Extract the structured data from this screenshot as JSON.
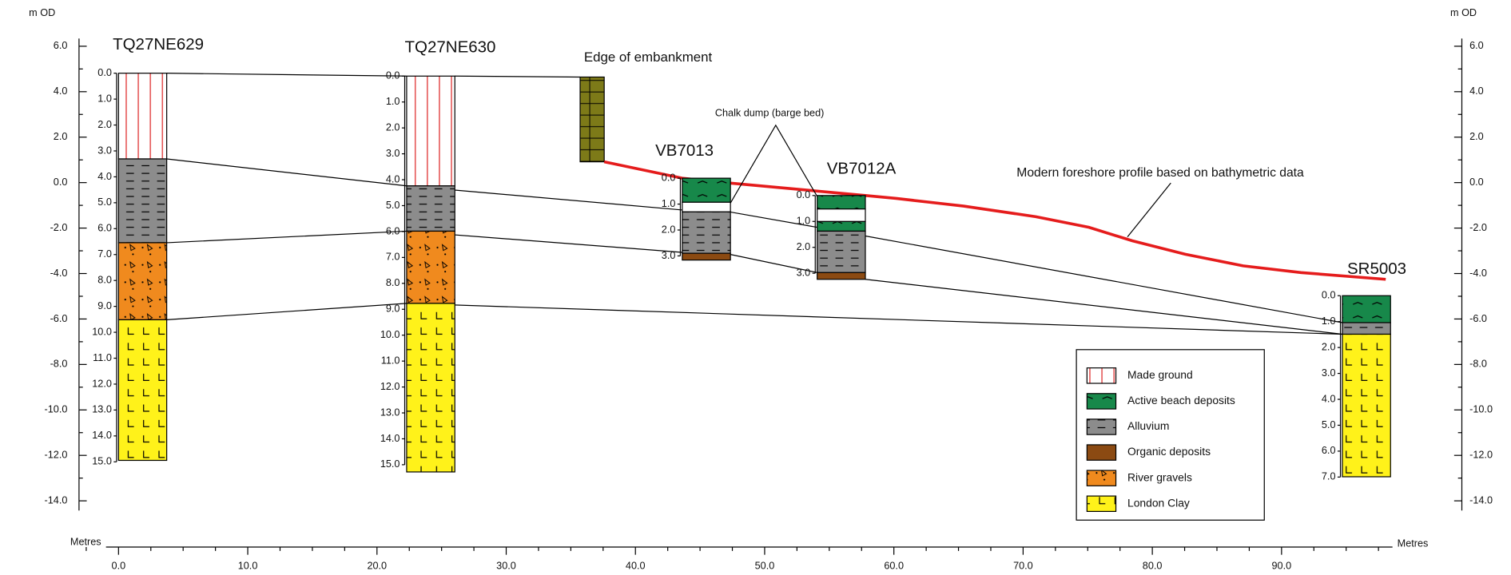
{
  "axes": {
    "left_unit": "m OD",
    "right_unit": "m OD",
    "y_ticks": [
      "6.0",
      "4.0",
      "2.0",
      "0.0",
      "-2.0",
      "-4.0",
      "-6.0",
      "-8.0",
      "-10.0",
      "-12.0",
      "-14.0"
    ],
    "x_unit_left": "Metres",
    "x_unit_right": "Metres",
    "x_ticks": [
      "0.0",
      "10.0",
      "20.0",
      "30.0",
      "40.0",
      "50.0",
      "60.0",
      "70.0",
      "80.0",
      "90.0"
    ]
  },
  "boreholes": [
    {
      "name": "TQ27NE629",
      "depths": [
        "0.0",
        "1.0",
        "2.0",
        "3.0",
        "4.0",
        "5.0",
        "6.0",
        "7.0",
        "8.0",
        "9.0",
        "10.0",
        "11.0",
        "12.0",
        "13.0",
        "14.0",
        "15.0"
      ]
    },
    {
      "name": "TQ27NE630",
      "depths": [
        "0.0",
        "1.0",
        "2.0",
        "3.0",
        "4.0",
        "5.0",
        "6.0",
        "7.0",
        "8.0",
        "9.0",
        "10.0",
        "11.0",
        "12.0",
        "13.0",
        "14.0",
        "15.0"
      ]
    },
    {
      "name": "VB7013",
      "depths": [
        "0.0",
        "1.0",
        "2.0",
        "3.0"
      ]
    },
    {
      "name": "VB7012A",
      "depths": [
        "0.0",
        "1.0",
        "2.0",
        "3.0"
      ]
    },
    {
      "name": "SR5003",
      "depths": [
        "0.0",
        "1.0",
        "2.0",
        "3.0",
        "4.0",
        "5.0",
        "6.0",
        "7.0"
      ]
    }
  ],
  "embankment": {
    "label": "Edge of embankment"
  },
  "annotations": {
    "chalk_dump": "Chalk dump (barge bed)",
    "foreshore": "Modern foreshore profile based on bathymetric data"
  },
  "legend": [
    "Made ground",
    "Active beach deposits",
    "Alluvium",
    "Organic deposits",
    "River gravels",
    "London Clay"
  ]
}
